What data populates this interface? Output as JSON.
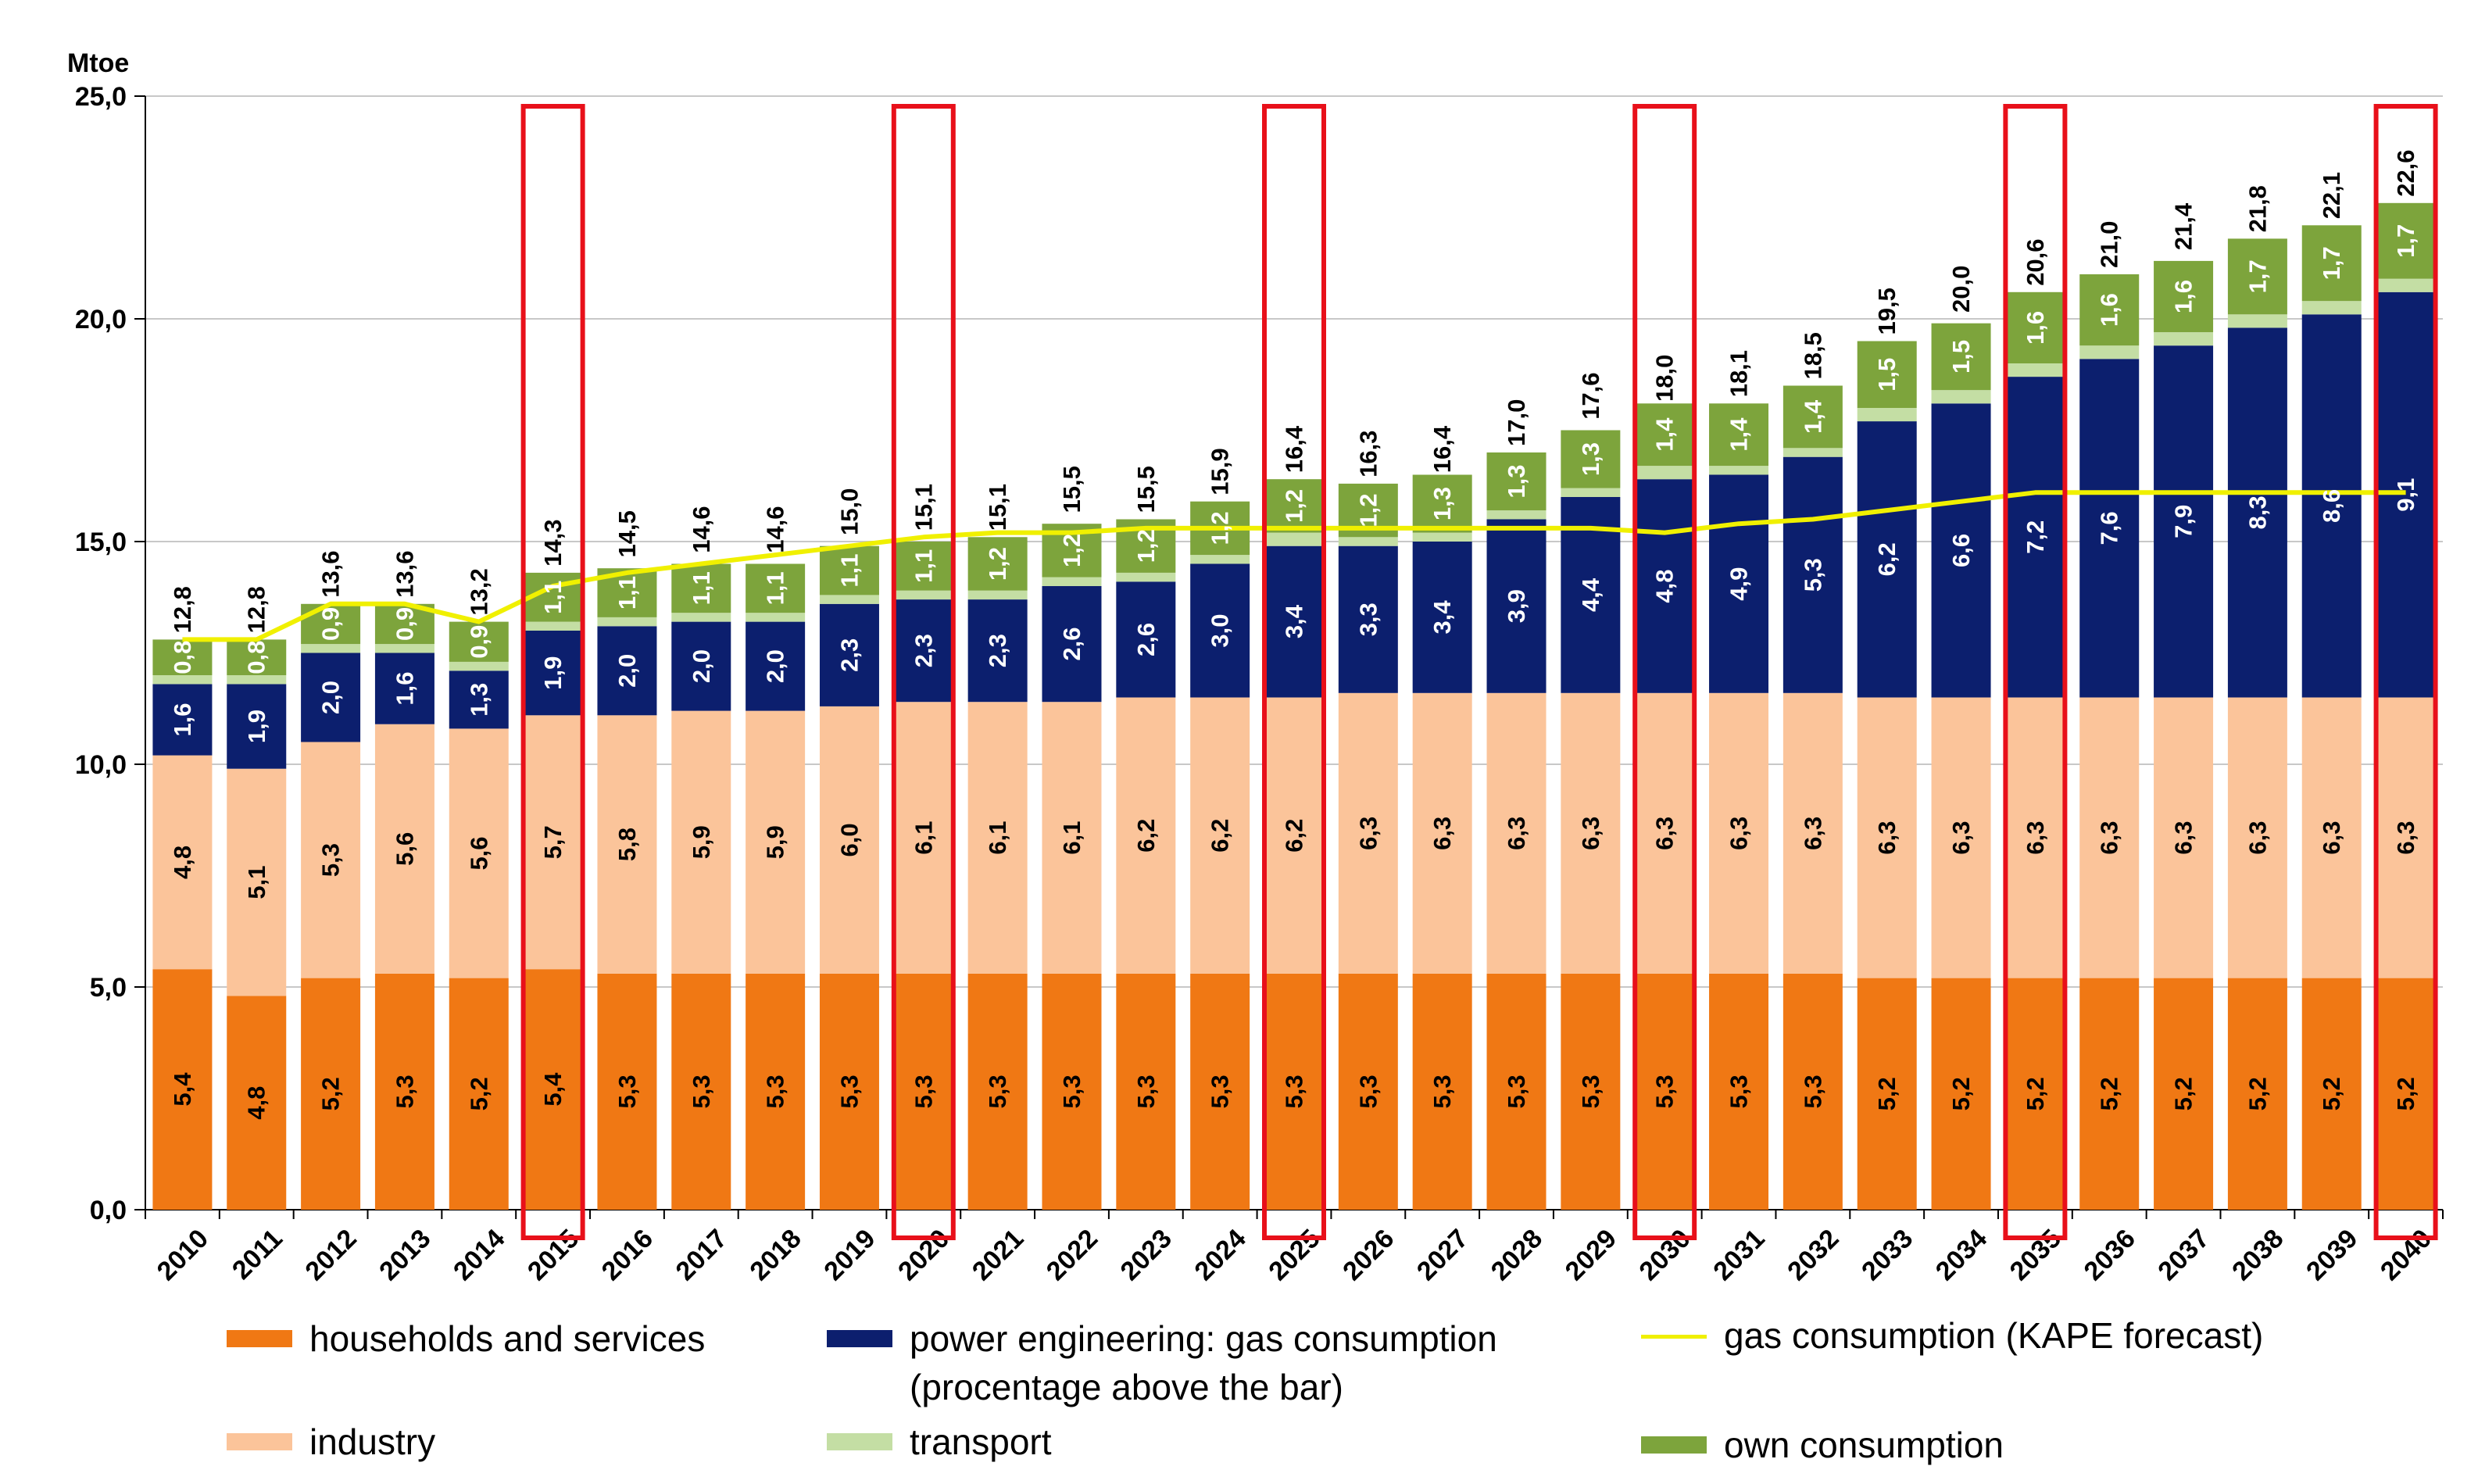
{
  "chart_data": {
    "type": "bar",
    "stacked": true,
    "unit_label": "Mtoe",
    "ylim": [
      0,
      25
    ],
    "yticks": [
      "0,0",
      "5,0",
      "10,0",
      "15,0",
      "20,0",
      "25,0"
    ],
    "ytick_values": [
      0,
      5,
      10,
      15,
      20,
      25
    ],
    "categories": [
      "2010",
      "2011",
      "2012",
      "2013",
      "2014",
      "2015",
      "2016",
      "2017",
      "2018",
      "2019",
      "2020",
      "2021",
      "2022",
      "2023",
      "2024",
      "2025",
      "2026",
      "2027",
      "2028",
      "2029",
      "2030",
      "2031",
      "2032",
      "2033",
      "2034",
      "2035",
      "2036",
      "2037",
      "2038",
      "2039",
      "2040"
    ],
    "highlighted_years": [
      "2015",
      "2020",
      "2025",
      "2030",
      "2035",
      "2040"
    ],
    "series": [
      {
        "name": "households and services",
        "color": "#f07814",
        "label_color": "#000000",
        "labels": [
          "5,4",
          "4,8",
          "5,2",
          "5,3",
          "5,2",
          "5,4",
          "5,3",
          "5,3",
          "5,3",
          "5,3",
          "5,3",
          "5,3",
          "5,3",
          "5,3",
          "5,3",
          "5,3",
          "5,3",
          "5,3",
          "5,3",
          "5,3",
          "5,3",
          "5,3",
          "5,3",
          "5,2",
          "5,2",
          "5,2",
          "5,2",
          "5,2",
          "5,2",
          "5,2",
          "5,2"
        ],
        "values": [
          5.4,
          4.8,
          5.2,
          5.3,
          5.2,
          5.4,
          5.3,
          5.3,
          5.3,
          5.3,
          5.3,
          5.3,
          5.3,
          5.3,
          5.3,
          5.3,
          5.3,
          5.3,
          5.3,
          5.3,
          5.3,
          5.3,
          5.3,
          5.2,
          5.2,
          5.2,
          5.2,
          5.2,
          5.2,
          5.2,
          5.2
        ]
      },
      {
        "name": "industry",
        "color": "#fbc49a",
        "label_color": "#000000",
        "labels": [
          "4,8",
          "5,1",
          "5,3",
          "5,6",
          "5,6",
          "5,7",
          "5,8",
          "5,9",
          "5,9",
          "6,0",
          "6,1",
          "6,1",
          "6,1",
          "6,2",
          "6,2",
          "6,2",
          "6,3",
          "6,3",
          "6,3",
          "6,3",
          "6,3",
          "6,3",
          "6,3",
          "6,3",
          "6,3",
          "6,3",
          "6,3",
          "6,3",
          "6,3",
          "6,3",
          "6,3"
        ],
        "values": [
          4.8,
          5.1,
          5.3,
          5.6,
          5.6,
          5.7,
          5.8,
          5.9,
          5.9,
          6.0,
          6.1,
          6.1,
          6.1,
          6.2,
          6.2,
          6.2,
          6.3,
          6.3,
          6.3,
          6.3,
          6.3,
          6.3,
          6.3,
          6.3,
          6.3,
          6.3,
          6.3,
          6.3,
          6.3,
          6.3,
          6.3
        ]
      },
      {
        "name": "power engineering: gas consumption",
        "color": "#0c1f6e",
        "label_color": "#ffffff",
        "labels": [
          "1,6",
          "1,9",
          "2,0",
          "1,6",
          "1,3",
          "1,9",
          "2,0",
          "2,0",
          "2,0",
          "2,3",
          "2,3",
          "2,3",
          "2,6",
          "2,6",
          "3,0",
          "3,4",
          "3,3",
          "3,4",
          "3,9",
          "4,4",
          "4,8",
          "4,9",
          "5,3",
          "6,2",
          "6,6",
          "7,2",
          "7,6",
          "7,9",
          "8,3",
          "8,6",
          "9,1"
        ],
        "values": [
          1.6,
          1.9,
          2.0,
          1.6,
          1.3,
          1.9,
          2.0,
          2.0,
          2.0,
          2.3,
          2.3,
          2.3,
          2.6,
          2.6,
          3.0,
          3.4,
          3.3,
          3.4,
          3.9,
          4.4,
          4.8,
          4.9,
          5.3,
          6.2,
          6.6,
          7.2,
          7.6,
          7.9,
          8.3,
          8.6,
          9.1
        ]
      },
      {
        "name": "transport",
        "color": "#c4dea4",
        "label_color": "#000000",
        "labels": [],
        "values": [
          0.2,
          0.2,
          0.2,
          0.2,
          0.2,
          0.2,
          0.2,
          0.2,
          0.2,
          0.2,
          0.2,
          0.2,
          0.2,
          0.2,
          0.2,
          0.3,
          0.2,
          0.2,
          0.2,
          0.2,
          0.3,
          0.2,
          0.2,
          0.3,
          0.3,
          0.3,
          0.3,
          0.3,
          0.3,
          0.3,
          0.3
        ]
      },
      {
        "name": "own consumption",
        "color": "#7da43c",
        "label_color": "#ffffff",
        "labels": [
          "0,8",
          "0,8",
          "0,9",
          "0,9",
          "0,9",
          "1,1",
          "1,1",
          "1,1",
          "1,1",
          "1,1",
          "1,1",
          "1,2",
          "1,2",
          "1,2",
          "1,2",
          "1,2",
          "1,2",
          "1,3",
          "1,3",
          "1,3",
          "1,4",
          "1,4",
          "1,4",
          "1,5",
          "1,5",
          "1,6",
          "1,6",
          "1,6",
          "1,7",
          "1,7",
          "1,7"
        ],
        "values": [
          0.8,
          0.8,
          0.9,
          0.9,
          0.9,
          1.1,
          1.1,
          1.1,
          1.1,
          1.1,
          1.1,
          1.2,
          1.2,
          1.2,
          1.2,
          1.2,
          1.2,
          1.3,
          1.3,
          1.3,
          1.4,
          1.4,
          1.4,
          1.5,
          1.5,
          1.6,
          1.6,
          1.6,
          1.7,
          1.7,
          1.7
        ]
      }
    ],
    "totals": [
      "12,8",
      "12,8",
      "13,6",
      "13,6",
      "13,2",
      "14,3",
      "14,5",
      "14,6",
      "14,6",
      "15,0",
      "15,1",
      "15,1",
      "15,5",
      "15,5",
      "15,9",
      "16,4",
      "16,3",
      "16,4",
      "17,0",
      "17,6",
      "18,0",
      "18,1",
      "18,5",
      "19,5",
      "20,0",
      "20,6",
      "21,0",
      "21,4",
      "21,8",
      "22,1",
      "22,6"
    ],
    "total_values": [
      12.8,
      12.8,
      13.6,
      13.6,
      13.2,
      14.3,
      14.5,
      14.6,
      14.6,
      15.0,
      15.1,
      15.1,
      15.5,
      15.5,
      15.9,
      16.4,
      16.3,
      16.4,
      17.0,
      17.6,
      18.0,
      18.1,
      18.5,
      19.5,
      20.0,
      20.6,
      21.0,
      21.4,
      21.8,
      22.1,
      22.6
    ],
    "line_series": {
      "name": "gas consumption (KAPE forecast)",
      "color": "#f0f000",
      "values": [
        12.8,
        12.8,
        13.6,
        13.6,
        13.2,
        14.0,
        14.3,
        14.5,
        14.7,
        14.9,
        15.1,
        15.2,
        15.2,
        15.3,
        15.3,
        15.3,
        15.3,
        15.3,
        15.3,
        15.3,
        15.2,
        15.4,
        15.5,
        15.7,
        15.9,
        16.1,
        16.1,
        16.1,
        16.1,
        16.1,
        16.1
      ]
    }
  },
  "legend": {
    "households": "households and services",
    "power_line1": "power engineering: gas consumption",
    "power_line2": "(procentage above the bar)",
    "kape": "gas consumption (KAPE forecast)",
    "industry": "industry",
    "transport": "transport",
    "own": "own consumption"
  }
}
